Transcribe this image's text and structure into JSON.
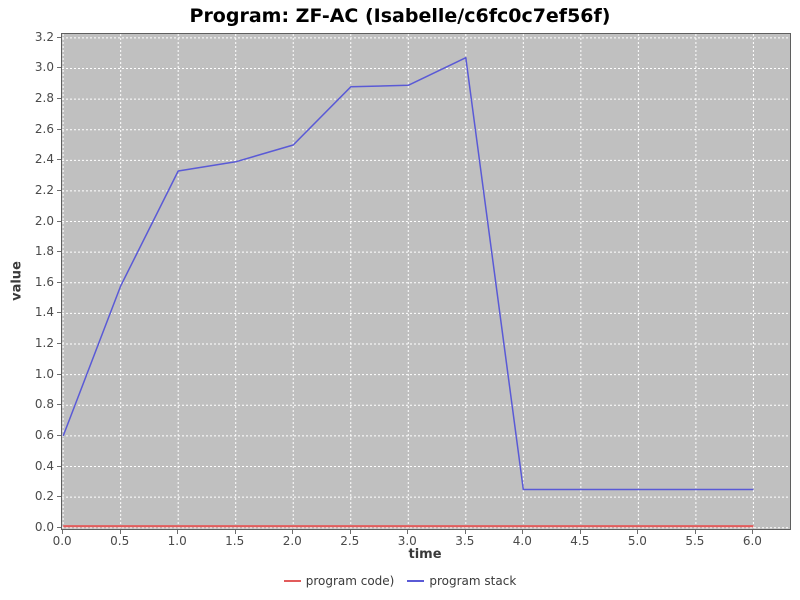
{
  "chart_data": {
    "type": "line",
    "title": "Program: ZF-AC (Isabelle/c6fc0c7ef56f)",
    "xlabel": "time",
    "ylabel": "value",
    "x_range": [
      -0.01,
      6.318
    ],
    "y_range": [
      -0.008,
      3.225
    ],
    "xticks": [
      "0.0",
      "0.5",
      "1.0",
      "1.5",
      "2.0",
      "2.5",
      "3.0",
      "3.5",
      "4.0",
      "4.5",
      "5.0",
      "5.5",
      "6.0"
    ],
    "yticks": [
      "0.0",
      "0.2",
      "0.4",
      "0.6",
      "0.8",
      "1.0",
      "1.2",
      "1.4",
      "1.6",
      "1.8",
      "2.0",
      "2.2",
      "2.4",
      "2.6",
      "2.8",
      "3.0",
      "3.2"
    ],
    "grid": "on",
    "grid_style": "white dashed",
    "legend_position": "bottom-center",
    "colors": {
      "plot_background": "#c0c0c0",
      "page_background": "#ffffff",
      "gridline": "#ffffff",
      "plot_border": "#5f5f5f",
      "tick_mark": "#6e6e6e",
      "tick_label": "#4a4a4a",
      "axis_title": "#3a3a3a",
      "title": "#000000",
      "legend_text": "#3a3a3a"
    },
    "series": [
      {
        "name": "program code)",
        "color": "#e25b5b",
        "x": [
          0.0,
          0.5,
          1.0,
          1.5,
          2.0,
          2.5,
          3.0,
          3.5,
          4.0,
          4.5,
          5.0,
          5.5,
          6.0
        ],
        "y": [
          0.01,
          0.01,
          0.01,
          0.01,
          0.01,
          0.01,
          0.01,
          0.01,
          0.01,
          0.01,
          0.01,
          0.01,
          0.01
        ]
      },
      {
        "name": "program stack",
        "color": "#5a5ad6",
        "x": [
          0.0,
          0.5,
          1.0,
          1.5,
          2.0,
          2.5,
          3.0,
          3.5,
          4.0,
          4.5,
          5.0,
          5.5,
          6.0
        ],
        "y": [
          0.6,
          1.58,
          2.33,
          2.39,
          2.5,
          2.88,
          2.89,
          3.07,
          0.25,
          0.25,
          0.25,
          0.25,
          0.25
        ]
      }
    ]
  }
}
